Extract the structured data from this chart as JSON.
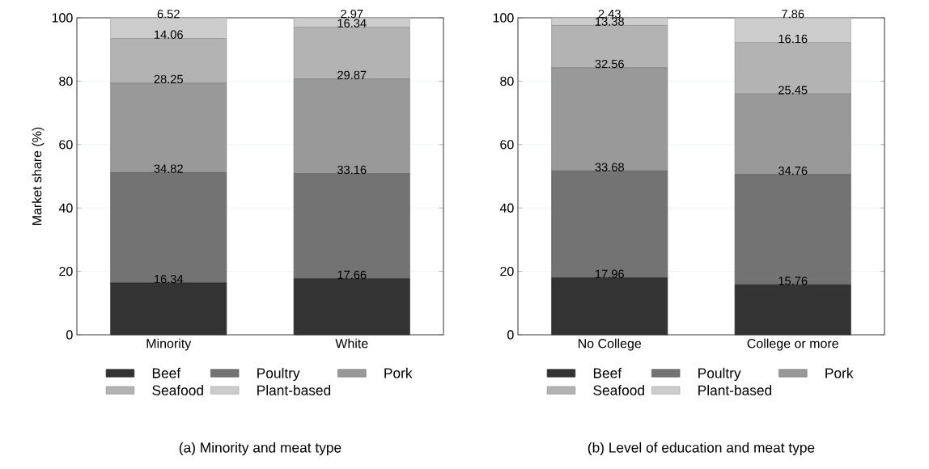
{
  "chart_data": [
    {
      "type": "bar",
      "stacked": true,
      "title": "(a) Minority and meat type",
      "ylabel": "Market share (%)",
      "categories": [
        "Minority",
        "White"
      ],
      "ylim": [
        0,
        100
      ],
      "yticks": [
        0,
        20,
        40,
        60,
        80,
        100
      ],
      "grid": "y",
      "legend": "bottom",
      "data_labels": true,
      "series": [
        {
          "name": "Beef",
          "color": "#333333",
          "values": [
            16.34,
            17.66
          ]
        },
        {
          "name": "Poultry",
          "color": "#737373",
          "values": [
            34.82,
            33.16
          ]
        },
        {
          "name": "Pork",
          "color": "#999999",
          "values": [
            28.25,
            29.87
          ]
        },
        {
          "name": "Seafood",
          "color": "#b3b3b3",
          "values": [
            14.06,
            16.34
          ]
        },
        {
          "name": "Plant-based",
          "color": "#cccccc",
          "values": [
            6.52,
            2.97
          ]
        }
      ]
    },
    {
      "type": "bar",
      "stacked": true,
      "title": "(b) Level of education and meat type",
      "categories": [
        "No College",
        "College or more"
      ],
      "ylim": [
        0,
        100
      ],
      "yticks": [
        0,
        20,
        40,
        60,
        80,
        100
      ],
      "grid": "y",
      "legend": "bottom",
      "data_labels": true,
      "series": [
        {
          "name": "Beef",
          "color": "#333333",
          "values": [
            17.96,
            15.76
          ]
        },
        {
          "name": "Poultry",
          "color": "#737373",
          "values": [
            33.68,
            34.76
          ]
        },
        {
          "name": "Pork",
          "color": "#999999",
          "values": [
            32.56,
            25.45
          ]
        },
        {
          "name": "Seafood",
          "color": "#b3b3b3",
          "values": [
            13.38,
            16.16
          ]
        },
        {
          "name": "Plant-based",
          "color": "#cccccc",
          "values": [
            2.43,
            7.86
          ]
        }
      ]
    }
  ]
}
